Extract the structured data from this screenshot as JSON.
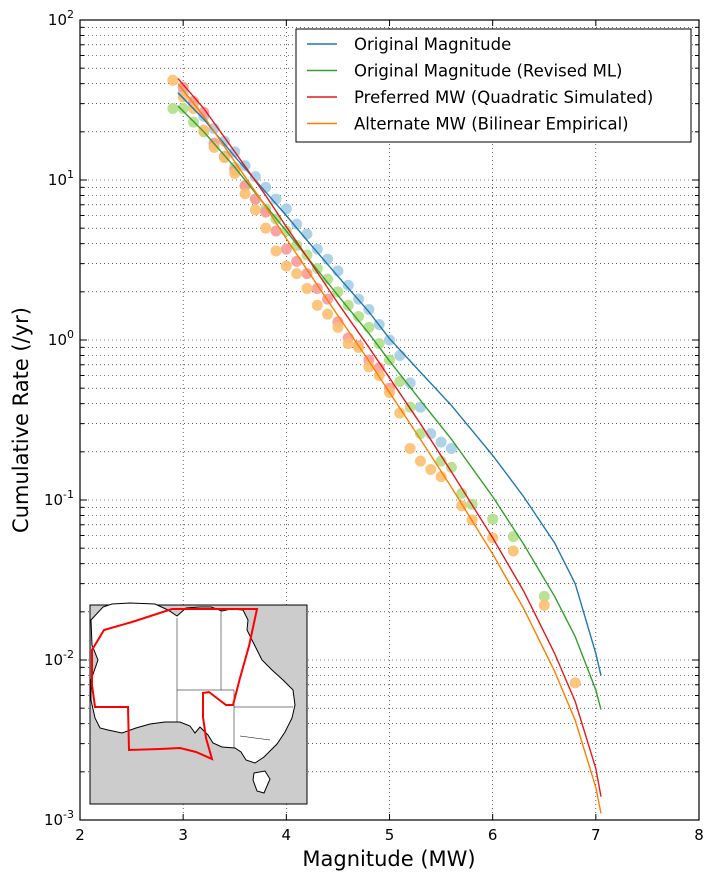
{
  "chart_data": {
    "type": "scatter",
    "title": "",
    "xlabel": "Magnitude (MW)",
    "ylabel": "Cumulative Rate (/yr)",
    "xlim": [
      2,
      8
    ],
    "ylim": [
      0.001,
      100
    ],
    "yscale": "log",
    "grid": true,
    "legend_position": "top-right",
    "x_ticks": [
      "2",
      "3",
      "4",
      "5",
      "6",
      "7",
      "8"
    ],
    "y_ticks": [
      {
        "base": "10",
        "exp": "-3"
      },
      {
        "base": "10",
        "exp": "-2"
      },
      {
        "base": "10",
        "exp": "-1"
      },
      {
        "base": "10",
        "exp": "0"
      },
      {
        "base": "10",
        "exp": "1"
      },
      {
        "base": "10",
        "exp": "2"
      }
    ],
    "series": [
      {
        "name": "Original Magnitude",
        "line_color": "#1f78b4",
        "point_color": "#a6cee3",
        "curve": {
          "x": [
            2.95,
            3.2,
            3.5,
            3.8,
            4.0,
            4.2,
            4.5,
            4.8,
            5.0,
            5.3,
            5.6,
            6.0,
            6.3,
            6.6,
            6.8,
            7.0,
            7.05
          ],
          "y": [
            35,
            24,
            14,
            8.4,
            6.0,
            4.2,
            2.5,
            1.5,
            1.02,
            0.63,
            0.39,
            0.19,
            0.105,
            0.054,
            0.03,
            0.011,
            0.008
          ]
        },
        "points": {
          "x": [
            3.0,
            3.1,
            3.2,
            3.3,
            3.4,
            3.5,
            3.6,
            3.7,
            3.8,
            3.9,
            4.0,
            4.1,
            4.2,
            4.3,
            4.4,
            4.5,
            4.6,
            4.7,
            4.8,
            4.9,
            5.0,
            5.1,
            5.2,
            5.3,
            5.4,
            5.5,
            5.6
          ],
          "y": [
            35,
            30,
            25,
            21,
            17.5,
            15,
            12.3,
            10.5,
            9.0,
            7.6,
            6.6,
            5.3,
            4.6,
            3.7,
            3.2,
            2.7,
            2.2,
            1.8,
            1.55,
            1.25,
            1.0,
            0.8,
            0.54,
            0.38,
            0.26,
            0.23,
            0.21
          ]
        }
      },
      {
        "name": "Original Magnitude (Revised ML)",
        "line_color": "#33a02c",
        "point_color": "#b2df8a",
        "curve": {
          "x": [
            2.95,
            3.2,
            3.5,
            3.8,
            4.0,
            4.2,
            4.5,
            4.8,
            5.0,
            5.3,
            5.6,
            6.0,
            6.3,
            6.6,
            6.8,
            7.0,
            7.05
          ],
          "y": [
            29,
            20,
            12,
            6.9,
            4.8,
            3.3,
            1.9,
            1.1,
            0.74,
            0.42,
            0.24,
            0.105,
            0.053,
            0.025,
            0.014,
            0.0065,
            0.0049
          ]
        },
        "points": {
          "x": [
            2.9,
            3.0,
            3.1,
            3.2,
            3.3,
            3.4,
            3.5,
            3.6,
            3.7,
            3.8,
            3.9,
            4.0,
            4.1,
            4.2,
            4.3,
            4.4,
            4.5,
            4.6,
            4.7,
            4.8,
            4.9,
            5.0,
            5.1,
            5.2,
            5.3,
            5.5,
            5.6,
            5.7,
            5.8,
            6.0,
            6.2,
            6.5
          ],
          "y": [
            28,
            28,
            23,
            20,
            16.5,
            14,
            12,
            9.2,
            7.6,
            6.6,
            5.7,
            4.8,
            3.9,
            3.4,
            2.8,
            2.4,
            2.0,
            1.65,
            1.4,
            1.2,
            0.95,
            0.75,
            0.55,
            0.38,
            0.26,
            0.175,
            0.16,
            0.11,
            0.094,
            0.076,
            0.059,
            0.025
          ]
        }
      },
      {
        "name": "Preferred MW (Quadratic Simulated)",
        "line_color": "#e31a1c",
        "point_color": "#fb9a99",
        "curve": {
          "x": [
            2.95,
            3.2,
            3.5,
            3.8,
            4.0,
            4.2,
            4.5,
            4.8,
            5.0,
            5.3,
            5.6,
            6.0,
            6.3,
            6.6,
            6.8,
            7.0,
            7.05
          ],
          "y": [
            43,
            28,
            15,
            8.0,
            5.1,
            3.3,
            1.7,
            0.9,
            0.58,
            0.3,
            0.15,
            0.058,
            0.027,
            0.011,
            0.0055,
            0.0021,
            0.0014
          ]
        },
        "points": {
          "x": [
            3.0,
            3.1,
            3.2,
            3.3,
            3.4,
            3.5,
            3.6,
            3.7,
            3.8,
            3.9,
            4.0,
            4.1,
            4.2,
            4.3,
            4.4,
            4.5,
            4.6,
            4.7,
            4.8,
            4.9,
            5.0
          ],
          "y": [
            38,
            31,
            26.5,
            17,
            14,
            11.5,
            9.2,
            7.6,
            6.3,
            4.8,
            3.7,
            3.1,
            2.6,
            2.1,
            1.8,
            1.3,
            1.03,
            0.92,
            0.75,
            0.67,
            0.5
          ]
        }
      },
      {
        "name": "Alternate MW (Bilinear Empirical)",
        "line_color": "#ff7f00",
        "point_color": "#fdbf6f",
        "curve": {
          "x": [
            2.95,
            3.2,
            3.5,
            3.8,
            4.0,
            4.2,
            4.5,
            4.8,
            5.0,
            5.3,
            5.6,
            6.0,
            6.3,
            6.6,
            6.8,
            7.0,
            7.05
          ],
          "y": [
            40,
            25,
            13,
            6.8,
            4.3,
            2.75,
            1.42,
            0.74,
            0.47,
            0.24,
            0.12,
            0.046,
            0.021,
            0.0085,
            0.0042,
            0.0016,
            0.0011
          ]
        },
        "points": {
          "x": [
            2.9,
            3.0,
            3.1,
            3.2,
            3.3,
            3.4,
            3.5,
            3.6,
            3.7,
            3.8,
            3.9,
            4.0,
            4.1,
            4.2,
            4.3,
            4.4,
            4.5,
            4.6,
            4.7,
            4.8,
            4.9,
            5.0,
            5.1,
            5.2,
            5.3,
            5.4,
            5.5,
            5.7,
            5.8,
            6.0,
            6.2,
            6.5,
            6.8
          ],
          "y": [
            42,
            33,
            28,
            20.5,
            16,
            13.8,
            11,
            8.2,
            6.5,
            5.0,
            3.6,
            2.9,
            2.6,
            2.1,
            1.65,
            1.45,
            1.2,
            0.95,
            0.9,
            0.68,
            0.6,
            0.47,
            0.35,
            0.21,
            0.175,
            0.155,
            0.14,
            0.092,
            0.075,
            0.058,
            0.048,
            0.022,
            0.0072
          ]
        }
      }
    ],
    "inset_map": {
      "background": "#cccccc",
      "land_color": "#ffffff",
      "region_color": "#ff0000"
    }
  }
}
